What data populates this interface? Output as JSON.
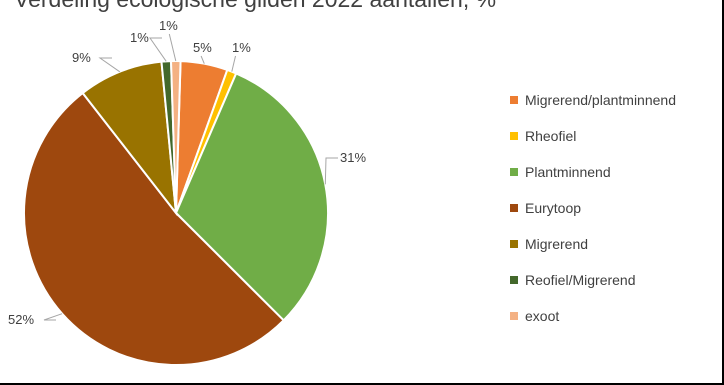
{
  "chart_data": {
    "type": "pie",
    "title": "Verdeling ecologische gilden 2022 aantallen, %",
    "slices": [
      {
        "name": "Migrerend/plantminnend",
        "value": 5,
        "label": "5%",
        "color": "#ed7d31"
      },
      {
        "name": "Rheofiel",
        "value": 1,
        "label": "1%",
        "color": "#ffc000"
      },
      {
        "name": "Plantminnend",
        "value": 31,
        "label": "31%",
        "color": "#70ad47"
      },
      {
        "name": "Eurytoop",
        "value": 52,
        "label": "52%",
        "color": "#9e480e"
      },
      {
        "name": "Migrerend",
        "value": 9,
        "label": "9%",
        "color": "#997300"
      },
      {
        "name": "Reofiel/Migrerend",
        "value": 1,
        "label": "1%",
        "color": "#43682b"
      },
      {
        "name": "exoot",
        "value": 1,
        "label": "1%",
        "color": "#f4b183"
      }
    ],
    "legend_position": "right"
  }
}
